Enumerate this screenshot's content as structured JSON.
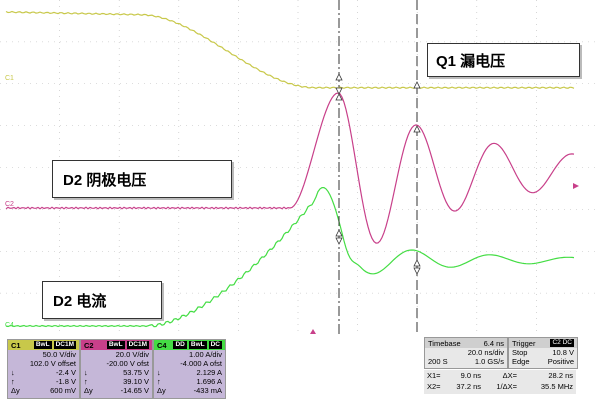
{
  "colors": {
    "c1": "#c8c84a",
    "c2": "#c8408a",
    "c4": "#44dd44",
    "grid": "#bbbbbb",
    "cursor": "#333333"
  },
  "channel_markers": {
    "c1": "C1",
    "c2": "C2",
    "c4": "C4"
  },
  "annotations": {
    "q1_drain_voltage": "Q1 漏电压",
    "d2_cathode_voltage": "D2 阴极电压",
    "d2_current": "D2 电流"
  },
  "panels": {
    "c1": {
      "label": "C1",
      "badges": [
        "BwL",
        "DC1M"
      ],
      "scale": "50.0 V/div",
      "offset": "102.0 V offset",
      "rows": [
        {
          "sym": "↓",
          "val": "-2.4 V"
        },
        {
          "sym": "↑",
          "val": "-1.8 V"
        },
        {
          "sym": "Δy",
          "val": "600 mV"
        }
      ]
    },
    "c2": {
      "label": "C2",
      "badges": [
        "BwL",
        "DC1M"
      ],
      "scale": "20.0 V/div",
      "offset": "-20.00 V ofst",
      "rows": [
        {
          "sym": "↓",
          "val": "53.75 V"
        },
        {
          "sym": "↑",
          "val": "39.10 V"
        },
        {
          "sym": "Δy",
          "val": "-14.65 V"
        }
      ]
    },
    "c4": {
      "label": "C4",
      "badges": [
        "DD",
        "BwL",
        "DC"
      ],
      "scale": "1.00 A/div",
      "offset": "-4.000 A ofst",
      "rows": [
        {
          "sym": "↓",
          "val": "2.129 A"
        },
        {
          "sym": "↑",
          "val": "1.696 A"
        },
        {
          "sym": "Δy",
          "val": "-433 mA"
        }
      ]
    },
    "timebase": {
      "label": "Timebase",
      "value": "6.4 ns",
      "line1": "20.0 ns/div",
      "line2_left": "200 S",
      "line2_right": "1.0 GS/s"
    },
    "trigger": {
      "label": "Trigger",
      "badge": "C2 DC",
      "line1_left": "Stop",
      "line1_right": "10.8 V",
      "line2_left": "Edge",
      "line2_right": "Positive"
    },
    "cursors": {
      "x1_label": "X1=",
      "x1_value": "9.0 ns",
      "dx_label": "ΔX=",
      "dx_value": "28.2 ns",
      "x2_label": "X2=",
      "x2_value": "37.2 ns",
      "inv_dx_label": "1/ΔX=",
      "inv_dx_value": "35.5 MHz"
    }
  }
}
